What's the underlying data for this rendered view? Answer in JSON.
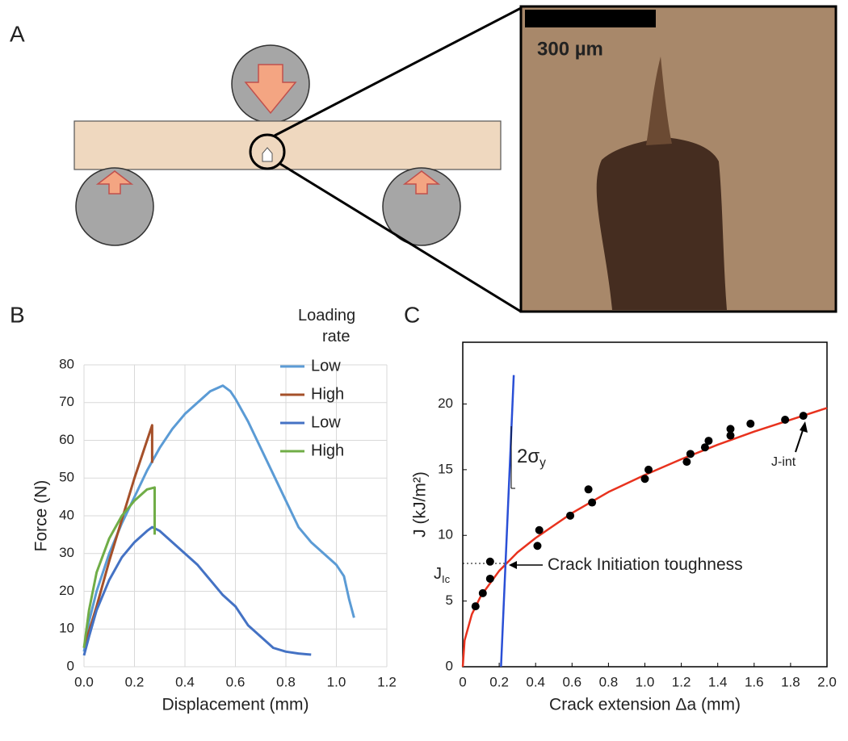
{
  "panel_labels": [
    "A",
    "B",
    "C"
  ],
  "micrograph": {
    "scale_bar_label": "300 µm"
  },
  "chart_data": [
    {
      "type": "line",
      "xlabel": "Displacement (mm)",
      "ylabel": "Force (N)",
      "legend_title": "Loading rate",
      "legend": "upper right",
      "grid": true,
      "xlim": [
        0,
        1.2
      ],
      "xticks": [
        {
          "value": 0,
          "label": "0.0"
        },
        0.2,
        0.4,
        0.6,
        0.8,
        {
          "value": 1,
          "label": "1.0"
        },
        1.2
      ],
      "ylim": [
        0,
        80
      ],
      "yticks": [
        0,
        10,
        20,
        30,
        40,
        50,
        60,
        70,
        80
      ],
      "series": [
        {
          "name": "Low",
          "color": "#5b9bd5",
          "x": [
            0,
            0.02,
            0.05,
            0.1,
            0.15,
            0.2,
            0.25,
            0.3,
            0.35,
            0.4,
            0.45,
            0.5,
            0.55,
            0.58,
            0.6,
            0.65,
            0.7,
            0.75,
            0.8,
            0.85,
            0.9,
            0.95,
            1.0,
            1.03,
            1.05,
            1.07
          ],
          "values": [
            4,
            12,
            20,
            30,
            38,
            45,
            52,
            58,
            63,
            67,
            70,
            73,
            74.5,
            73,
            71,
            65,
            58,
            51,
            44,
            37,
            33,
            30,
            27,
            24,
            18,
            13
          ]
        },
        {
          "name": "High",
          "color": "#a5502a",
          "x": [
            0,
            0.05,
            0.1,
            0.15,
            0.2,
            0.25,
            0.27,
            0.27
          ],
          "values": [
            5,
            16,
            28,
            39,
            50,
            60,
            64,
            54
          ]
        },
        {
          "name": "Low",
          "color": "#4472c4",
          "x": [
            0,
            0.02,
            0.05,
            0.1,
            0.15,
            0.2,
            0.25,
            0.27,
            0.3,
            0.35,
            0.4,
            0.45,
            0.5,
            0.55,
            0.6,
            0.65,
            0.7,
            0.75,
            0.8,
            0.85,
            0.9
          ],
          "values": [
            3,
            8,
            15,
            23,
            29,
            33,
            36,
            37,
            36,
            33,
            30,
            27,
            23,
            19,
            16,
            11,
            8,
            5,
            4,
            3.5,
            3.2
          ]
        },
        {
          "name": "High",
          "color": "#70ad47",
          "x": [
            0,
            0.02,
            0.05,
            0.1,
            0.15,
            0.2,
            0.25,
            0.28,
            0.28
          ],
          "values": [
            5,
            15,
            25,
            34,
            40,
            44,
            47,
            47.5,
            35
          ]
        }
      ]
    },
    {
      "type": "scatter",
      "xlabel": "Crack extension Δa (mm)",
      "ylabel": "J (kJ/m²)",
      "grid": false,
      "xlim": [
        0,
        2
      ],
      "xticks": [
        0,
        0.2,
        0.4,
        0.6,
        0.8,
        {
          "value": 1,
          "label": "1.0"
        },
        1.2,
        1.4,
        1.6,
        1.8,
        {
          "value": 2,
          "label": "2.0"
        }
      ],
      "ylim": [
        0,
        24.7
      ],
      "yticks": [
        0,
        5,
        10,
        15,
        20
      ],
      "series": [
        {
          "color": "#000000",
          "x": [
            0.07,
            0.11,
            0.15,
            0.15,
            0.41,
            0.42,
            0.59,
            0.69,
            0.71,
            1.0,
            1.02,
            1.23,
            1.25,
            1.33,
            1.35,
            1.47,
            1.47,
            1.58,
            1.77,
            1.87
          ],
          "values": [
            4.6,
            5.6,
            6.7,
            8.0,
            9.2,
            10.4,
            11.5,
            13.5,
            12.5,
            14.3,
            15.0,
            15.6,
            16.2,
            16.7,
            17.2,
            18.1,
            17.6,
            18.5,
            18.8,
            19.1
          ]
        }
      ],
      "lines": [
        {
          "color": "#e8321e",
          "x": [
            0,
            0.01,
            0.05,
            0.1,
            0.2,
            0.3,
            0.4,
            0.6,
            0.8,
            1.0,
            1.2,
            1.4,
            1.6,
            1.8,
            2.0
          ],
          "values": [
            0,
            2.0,
            4.0,
            5.4,
            7.3,
            8.7,
            9.8,
            11.7,
            13.3,
            14.6,
            15.8,
            16.9,
            17.9,
            18.8,
            19.7
          ]
        },
        {
          "color": "#2a4fd6",
          "x": [
            0.21,
            0.28
          ],
          "values": [
            0,
            22.2
          ]
        }
      ],
      "annotations": [
        {
          "text": "2σ",
          "sub": "y"
        },
        {
          "text": "J",
          "sub": "Ic"
        },
        {
          "text": "Crack Initiation toughness"
        },
        {
          "text": "J-int"
        }
      ]
    }
  ]
}
